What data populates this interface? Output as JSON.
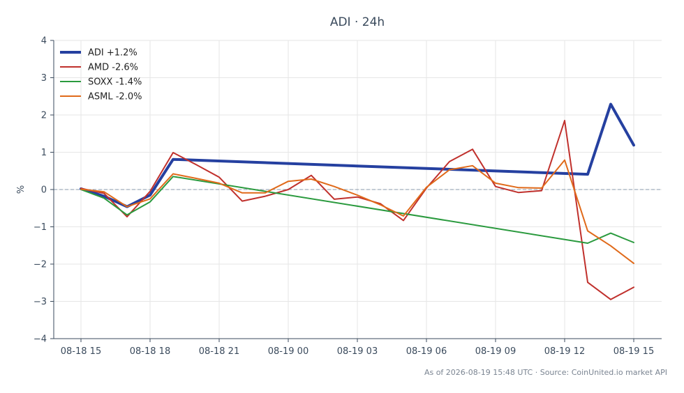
{
  "chart_data": {
    "type": "line",
    "title": "ADI · 24h",
    "xlabel": "",
    "ylabel": "%",
    "x": [
      "08-18 15",
      "08-18 16",
      "08-18 17",
      "08-18 18",
      "08-18 19",
      "08-18 20",
      "08-18 21",
      "08-18 22",
      "08-18 23",
      "08-19 00",
      "08-19 01",
      "08-19 02",
      "08-19 03",
      "08-19 04",
      "08-19 05",
      "08-19 06",
      "08-19 07",
      "08-19 08",
      "08-19 09",
      "08-19 10",
      "08-19 11",
      "08-19 12",
      "08-19 13",
      "08-19 14",
      "08-19 15"
    ],
    "x_ticks": [
      "08-18 15",
      "08-18 18",
      "08-18 21",
      "08-19 00",
      "08-19 03",
      "08-19 06",
      "08-19 09",
      "08-19 12",
      "08-19 15"
    ],
    "ylim": [
      -4,
      4
    ],
    "y_ticks": [
      -4,
      -3,
      -2,
      -1,
      0,
      1,
      2,
      3,
      4
    ],
    "y_tick_labels": [
      "−4",
      "−3",
      "−2",
      "−1",
      "0",
      "1",
      "2",
      "3",
      "4"
    ],
    "zero_line": true,
    "grid": true,
    "legend_position": "top-left",
    "series": [
      {
        "name": "ADI +1.2%",
        "color": "#2540a0",
        "width": 4,
        "values": [
          0.02,
          -0.18,
          -0.46,
          -0.15,
          0.81,
          null,
          null,
          null,
          null,
          null,
          null,
          null,
          null,
          null,
          null,
          null,
          null,
          null,
          null,
          null,
          null,
          null,
          0.41,
          2.29,
          1.19
        ]
      },
      {
        "name": "AMD -2.6%",
        "color": "#c0302c",
        "width": 2,
        "values": [
          0.03,
          -0.1,
          -0.73,
          -0.05,
          0.99,
          0.67,
          0.33,
          -0.31,
          -0.18,
          0.0,
          0.38,
          -0.26,
          -0.2,
          -0.38,
          -0.83,
          0.04,
          0.75,
          1.08,
          0.08,
          -0.08,
          -0.03,
          1.85,
          -2.49,
          -2.95,
          -2.62
        ]
      },
      {
        "name": "SOXX -1.4%",
        "color": "#2a9a3e",
        "width": 2,
        "values": [
          0.0,
          -0.23,
          -0.68,
          -0.33,
          0.35,
          null,
          null,
          null,
          null,
          null,
          null,
          null,
          null,
          null,
          null,
          null,
          null,
          null,
          null,
          null,
          null,
          null,
          -1.44,
          -1.17,
          -1.42
        ]
      },
      {
        "name": "ASML -2.0%",
        "color": "#e06a1a",
        "width": 2,
        "values": [
          0.01,
          -0.06,
          -0.46,
          -0.25,
          0.42,
          0.3,
          0.17,
          -0.09,
          -0.09,
          0.22,
          0.28,
          0.08,
          -0.15,
          -0.41,
          -0.71,
          0.06,
          0.53,
          0.64,
          0.17,
          0.05,
          0.04,
          0.79,
          -1.11,
          -1.51,
          -1.98
        ]
      }
    ],
    "footer": "As of 2026-08-19 15:48 UTC · Source: CoinUnited.io market API"
  }
}
